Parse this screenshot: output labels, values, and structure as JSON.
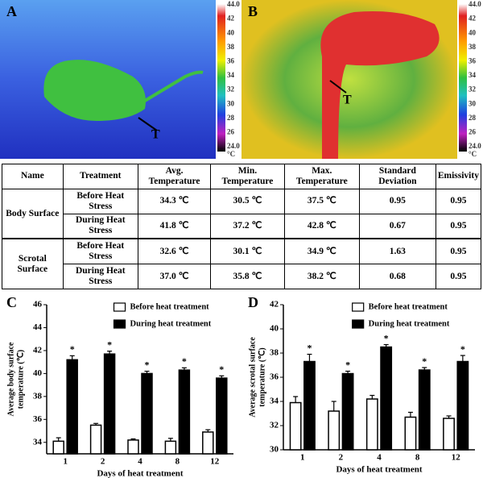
{
  "panels": [
    {
      "label": "A",
      "marker": "T",
      "colorbar": [
        "44.0",
        "42",
        "40",
        "38",
        "36",
        "34",
        "32",
        "30",
        "28",
        "26",
        "24.0"
      ],
      "unit": "°C"
    },
    {
      "label": "B",
      "marker": "T",
      "colorbar": [
        "44.0",
        "42",
        "40",
        "38",
        "36",
        "34",
        "32",
        "30",
        "28",
        "26",
        "24.0"
      ],
      "unit": "°C"
    }
  ],
  "table": {
    "header": [
      "Name",
      "Treatment",
      "Avg. Temperature",
      "Min. Temperature",
      "Max. Temperature",
      "Standard Deviation",
      "Emissivity"
    ],
    "groups": [
      {
        "name": "Body Surface",
        "rows": [
          [
            "Before Heat Stress",
            "34.3 ℃",
            "30.5 ℃",
            "37.5 ℃",
            "0.95",
            "0.95"
          ],
          [
            "During Heat Stress",
            "41.8 ℃",
            "37.2 ℃",
            "42.8 ℃",
            "0.67",
            "0.95"
          ]
        ]
      },
      {
        "name": "Scrotal Surface",
        "rows": [
          [
            "Before Heat Stress",
            "32.6 ℃",
            "30.1 ℃",
            "34.9 ℃",
            "1.63",
            "0.95"
          ],
          [
            "During Heat Stress",
            "37.0 ℃",
            "35.8 ℃",
            "38.2 ℃",
            "0.68",
            "0.95"
          ]
        ]
      }
    ]
  },
  "chart_data": [
    {
      "type": "bar",
      "panel_label": "C",
      "categories": [
        "1",
        "2",
        "4",
        "8",
        "12"
      ],
      "xlabel": "Days of heat treatment",
      "ylabel": [
        "Average body surface",
        "temperature (℃)"
      ],
      "ylim": [
        33,
        46
      ],
      "yticks": [
        34,
        36,
        38,
        40,
        42,
        44,
        46
      ],
      "series": [
        {
          "name": "Before heat treatment",
          "color": "#ffffff",
          "values": [
            34.1,
            35.5,
            34.2,
            34.1,
            34.9
          ],
          "errors": [
            0.3,
            0.15,
            0.1,
            0.25,
            0.2
          ]
        },
        {
          "name": "During heat treatment",
          "color": "#000000",
          "values": [
            41.2,
            41.7,
            40.0,
            40.3,
            39.6
          ],
          "errors": [
            0.35,
            0.25,
            0.2,
            0.2,
            0.2
          ],
          "significance": [
            "*",
            "*",
            "*",
            "*",
            "*"
          ]
        }
      ]
    },
    {
      "type": "bar",
      "panel_label": "D",
      "categories": [
        "1",
        "2",
        "4",
        "8",
        "12"
      ],
      "xlabel": "Days of heat treatment",
      "ylabel": [
        "Average scrotal surface",
        "temperature (℃)"
      ],
      "ylim": [
        30,
        42
      ],
      "yticks": [
        30,
        32,
        34,
        36,
        38,
        40,
        42
      ],
      "series": [
        {
          "name": "Before heat treatment",
          "color": "#ffffff",
          "values": [
            33.9,
            33.2,
            34.2,
            32.7,
            32.6
          ],
          "errors": [
            0.5,
            0.8,
            0.3,
            0.4,
            0.2
          ]
        },
        {
          "name": "During heat treatment",
          "color": "#000000",
          "values": [
            37.3,
            36.3,
            38.5,
            36.6,
            37.3
          ],
          "errors": [
            0.6,
            0.2,
            0.2,
            0.2,
            0.5
          ],
          "significance": [
            "*",
            "*",
            "*",
            "*",
            "*"
          ]
        }
      ]
    }
  ]
}
